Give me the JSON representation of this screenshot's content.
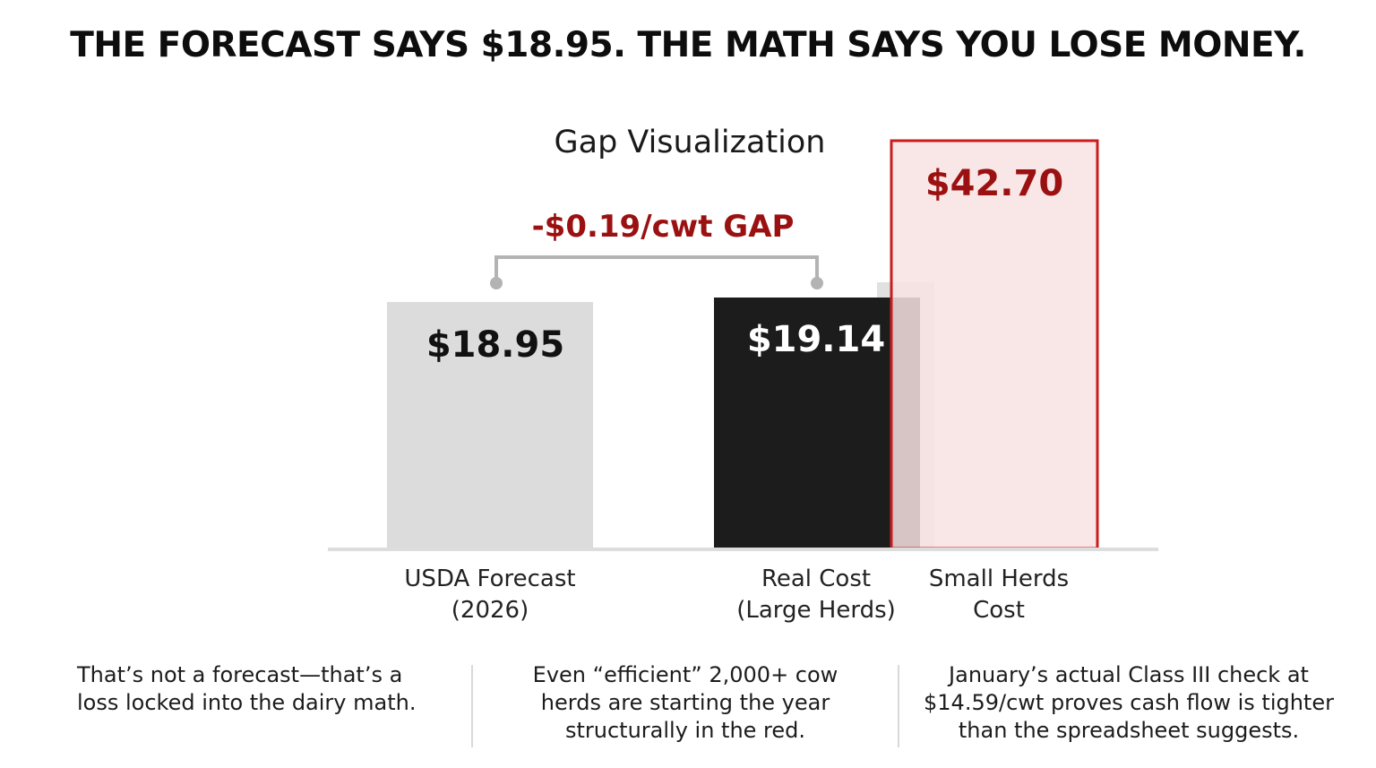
{
  "headline": "THE FORECAST SAYS $18.95. THE MATH SAYS YOU LOSE MONEY.",
  "colors": {
    "forecast_bar": "#dcdcdc",
    "large_herds_bar": "#1c1c1c",
    "small_herds_fill": "#f8e3e3",
    "small_herds_stroke": "#c81e1e",
    "accent_red": "#9b1111",
    "baseline": "#dddddd",
    "bracket": "#b3b3b3"
  },
  "chart_data": {
    "type": "bar",
    "title": "Gap Visualization",
    "categories": [
      [
        "USDA Forecast",
        "(2026)"
      ],
      [
        "Real Cost",
        "(Large Herds)"
      ],
      [
        "Small Herds",
        "Cost"
      ]
    ],
    "values": [
      18.95,
      19.14,
      42.7
    ],
    "value_labels": [
      "$18.95",
      "$19.14",
      "$42.70"
    ],
    "annotation": {
      "text": "-$0.19/cwt GAP",
      "between": [
        0,
        1
      ]
    },
    "xlabel": "",
    "ylabel": "",
    "grid": false,
    "legend": "none"
  },
  "footer": {
    "notes": [
      [
        "That’s not a forecast—that’s a",
        "loss locked into the dairy math."
      ],
      [
        "Even “efficient” 2,000+ cow",
        "herds are starting the year",
        "structurally in the red."
      ],
      [
        "January’s actual Class III check at",
        "$14.59/cwt proves cash flow is tighter",
        "than the spreadsheet suggests."
      ]
    ]
  }
}
